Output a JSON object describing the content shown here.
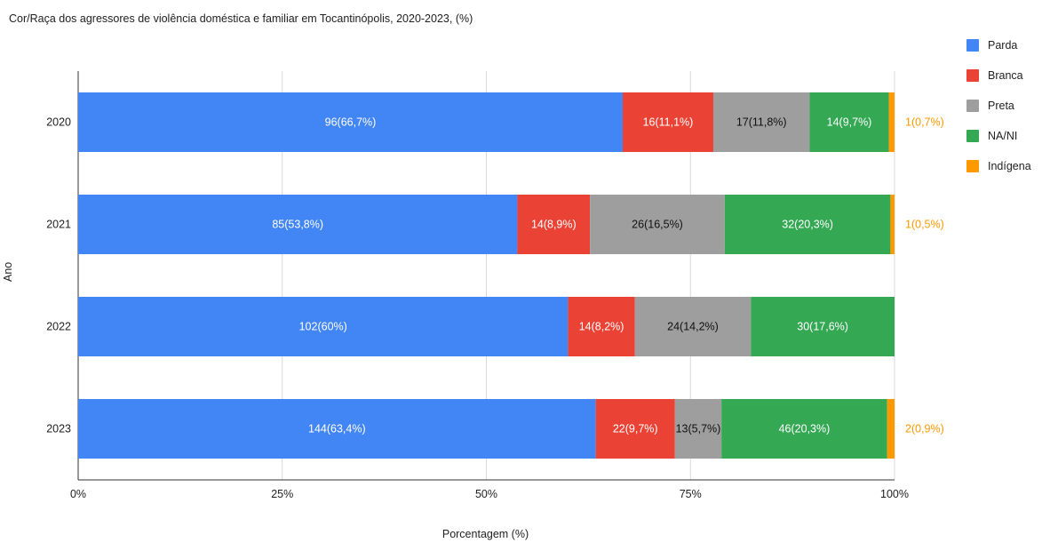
{
  "chart_data": {
    "type": "bar",
    "orientation": "horizontal",
    "stacked": true,
    "title": "Cor/Raça dos agressores de violência doméstica e familiar em Tocantinópolis, 2020-2023, (%)",
    "xlabel": "Porcentagem (%)",
    "ylabel": "Ano",
    "categories": [
      "2020",
      "2021",
      "2022",
      "2023"
    ],
    "xlim": [
      0,
      100
    ],
    "xticks": [
      "0%",
      "25%",
      "50%",
      "75%",
      "100%"
    ],
    "grid": true,
    "legend_position": "right",
    "series": [
      {
        "name": "Parda",
        "color": "#4285F4",
        "values": [
          66.7,
          53.8,
          60,
          63.4
        ],
        "labels": [
          "96(66,7%)",
          "85(53,8%)",
          "102(60%)",
          "144(63,4%)"
        ],
        "label_color": "#ffffff"
      },
      {
        "name": "Branca",
        "color": "#EA4335",
        "values": [
          11.1,
          8.9,
          8.2,
          9.7
        ],
        "labels": [
          "16(11,1%)",
          "14(8,9%)",
          "14(8,2%)",
          "22(9,7%)"
        ],
        "label_color": "#ffffff"
      },
      {
        "name": "Preta",
        "color": "#9E9E9E",
        "values": [
          11.8,
          16.5,
          14.2,
          5.7
        ],
        "labels": [
          "17(11,8%)",
          "26(16,5%)",
          "24(14,2%)",
          "13(5,7%)"
        ],
        "label_color": "#111111"
      },
      {
        "name": "NA/NI",
        "color": "#34A853",
        "values": [
          9.7,
          20.3,
          17.6,
          20.3
        ],
        "labels": [
          "14(9,7%)",
          "32(20,3%)",
          "30(17,6%)",
          "46(20,3%)"
        ],
        "label_color": "#ffffff"
      },
      {
        "name": "Indígena",
        "color": "#FF9900",
        "values": [
          0.7,
          0.5,
          0,
          0.9
        ],
        "labels": [
          "1(0,7%)",
          "1(0,5%)",
          "",
          "2(0,9%)"
        ],
        "label_color": "#FF9900",
        "label_outside": true
      }
    ]
  }
}
